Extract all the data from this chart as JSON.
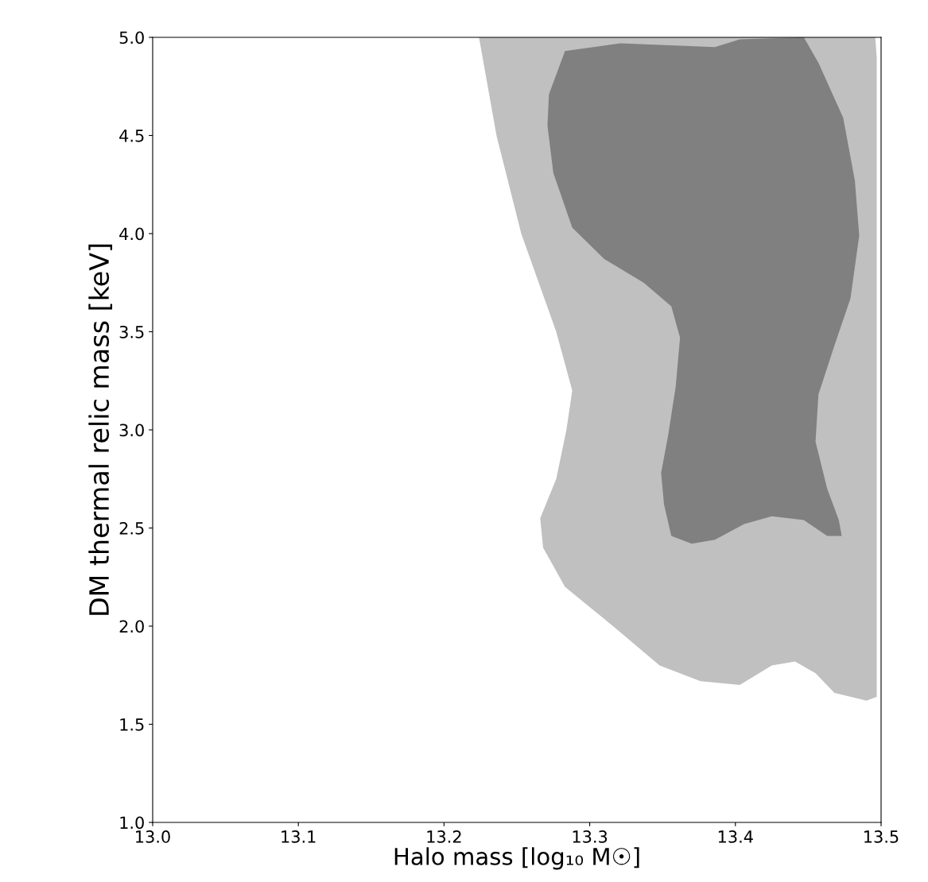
{
  "chart_data": {
    "type": "area",
    "xlabel": "Halo mass [log₁₀ M☉]",
    "ylabel": "DM thermal relic mass [keV]",
    "xlim": [
      13.0,
      13.5
    ],
    "xticks": [
      {
        "value": 13.0,
        "label": "13.0"
      },
      13.1,
      13.2,
      13.3,
      13.4,
      13.5
    ],
    "ylim": [
      1.0,
      5.0
    ],
    "yticks": [
      {
        "value": 1.0,
        "label": "1.0"
      },
      1.5,
      {
        "value": 2.0,
        "label": "2.0"
      },
      2.5,
      {
        "value": 3.0,
        "label": "3.0"
      },
      3.5,
      {
        "value": 4.0,
        "label": "4.0"
      },
      4.5,
      {
        "value": 5.0,
        "label": "5.0"
      }
    ],
    "grid": false,
    "series": [
      {
        "color": "#c0c0c0",
        "x": [
          13.224,
          13.496,
          13.497,
          13.497,
          13.49,
          13.468,
          13.455,
          13.441,
          13.425,
          13.403,
          13.376,
          13.348,
          13.316,
          13.283,
          13.268,
          13.266,
          13.277,
          13.284,
          13.288,
          13.277,
          13.253,
          13.236
        ],
        "values": [
          5.0,
          5.0,
          4.9,
          1.64,
          1.62,
          1.66,
          1.76,
          1.82,
          1.8,
          1.7,
          1.72,
          1.8,
          2.0,
          2.2,
          2.4,
          2.55,
          2.75,
          3.0,
          3.2,
          3.5,
          4.0,
          4.5
        ]
      },
      {
        "color": "#808080",
        "x": [
          13.272,
          13.283,
          13.321,
          13.386,
          13.403,
          13.447,
          13.457,
          13.474,
          13.482,
          13.485,
          13.479,
          13.468,
          13.457,
          13.455,
          13.463,
          13.471,
          13.473,
          13.463,
          13.447,
          13.425,
          13.406,
          13.386,
          13.37,
          13.356,
          13.351,
          13.349,
          13.354,
          13.359,
          13.362,
          13.356,
          13.337,
          13.31,
          13.288,
          13.275,
          13.271
        ],
        "values": [
          4.71,
          4.93,
          4.97,
          4.95,
          4.99,
          5.0,
          4.87,
          4.59,
          4.27,
          3.99,
          3.67,
          3.43,
          3.18,
          2.94,
          2.7,
          2.54,
          2.46,
          2.46,
          2.54,
          2.56,
          2.52,
          2.44,
          2.42,
          2.46,
          2.62,
          2.78,
          2.98,
          3.22,
          3.47,
          3.63,
          3.75,
          3.87,
          4.03,
          4.31,
          4.55
        ]
      }
    ]
  }
}
